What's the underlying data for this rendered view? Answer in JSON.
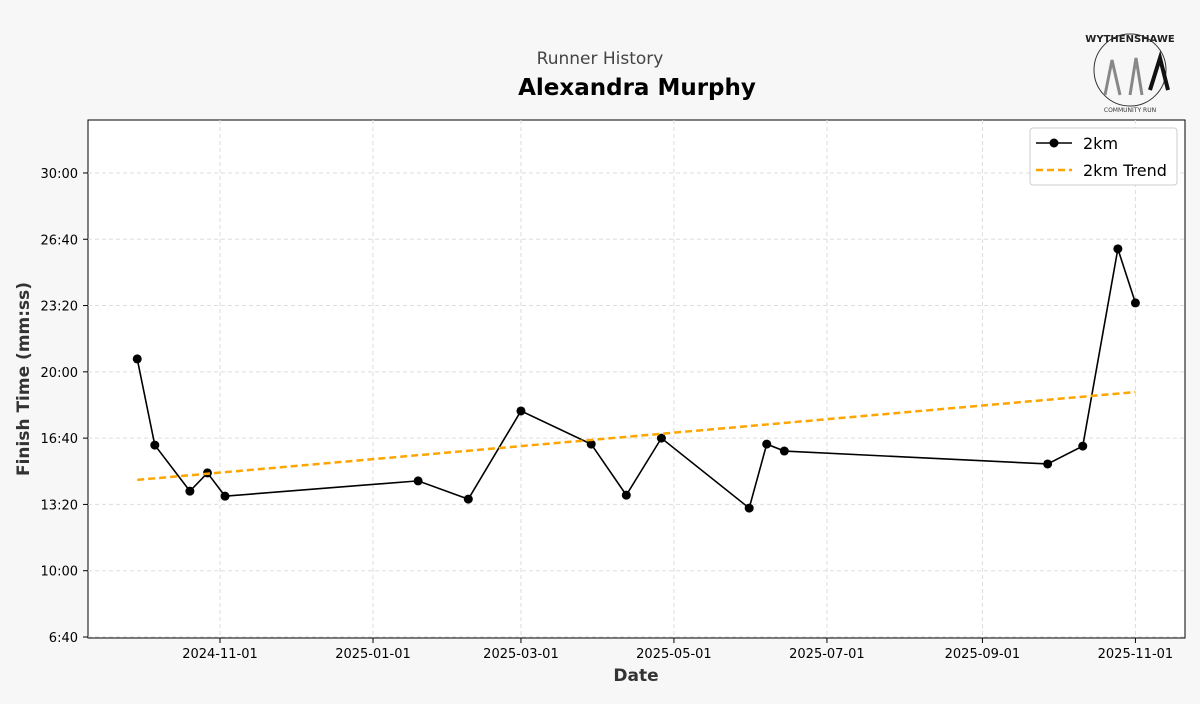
{
  "chart_data": {
    "type": "line",
    "subtitle": "Runner History",
    "title": "Alexandra Murphy",
    "xlabel": "Date",
    "ylabel": "Finish Time (mm:ss)",
    "xlim": [
      "2024-09-17",
      "2025-11-22"
    ],
    "ylim_seconds": [
      400,
      2240
    ],
    "grid": true,
    "legend_position": "top-right",
    "x_ticks": [
      "2024-11-01",
      "2025-01-01",
      "2025-03-01",
      "2025-05-01",
      "2025-07-01",
      "2025-09-01",
      "2025-11-01"
    ],
    "y_ticks": [
      {
        "s": 400,
        "label": "6:40"
      },
      {
        "s": 600,
        "label": "10:00"
      },
      {
        "s": 800,
        "label": "13:20"
      },
      {
        "s": 1000,
        "label": "16:40"
      },
      {
        "s": 1200,
        "label": "20:00"
      },
      {
        "s": 1400,
        "label": "23:20"
      },
      {
        "s": 1600,
        "label": "26:40"
      },
      {
        "s": 1800,
        "label": "30:00"
      }
    ],
    "series": [
      {
        "name": "2km",
        "color": "#000000",
        "points": [
          [
            "2024-09-29",
            1239
          ],
          [
            "2024-10-06",
            979
          ],
          [
            "2024-10-20",
            840
          ],
          [
            "2024-10-27",
            895
          ],
          [
            "2024-11-03",
            825
          ],
          [
            "2025-01-19",
            871
          ],
          [
            "2025-02-08",
            816
          ],
          [
            "2025-03-01",
            1082
          ],
          [
            "2025-03-29",
            982
          ],
          [
            "2025-04-12",
            828
          ],
          [
            "2025-04-26",
            1000
          ],
          [
            "2025-05-31",
            789
          ],
          [
            "2025-06-07",
            982
          ],
          [
            "2025-06-14",
            961
          ],
          [
            "2025-09-27",
            922
          ],
          [
            "2025-10-11",
            976
          ],
          [
            "2025-10-25",
            1571
          ],
          [
            "2025-11-01",
            1408
          ]
        ]
      },
      {
        "name": "2km Trend",
        "color": "#FFA500",
        "dashed": true,
        "points": [
          [
            "2024-09-29",
            874
          ],
          [
            "2025-11-01",
            1139
          ]
        ]
      }
    ]
  },
  "logo": {
    "text": "WYTHENSHAWE",
    "subtext": "COMMUNITY RUN"
  }
}
